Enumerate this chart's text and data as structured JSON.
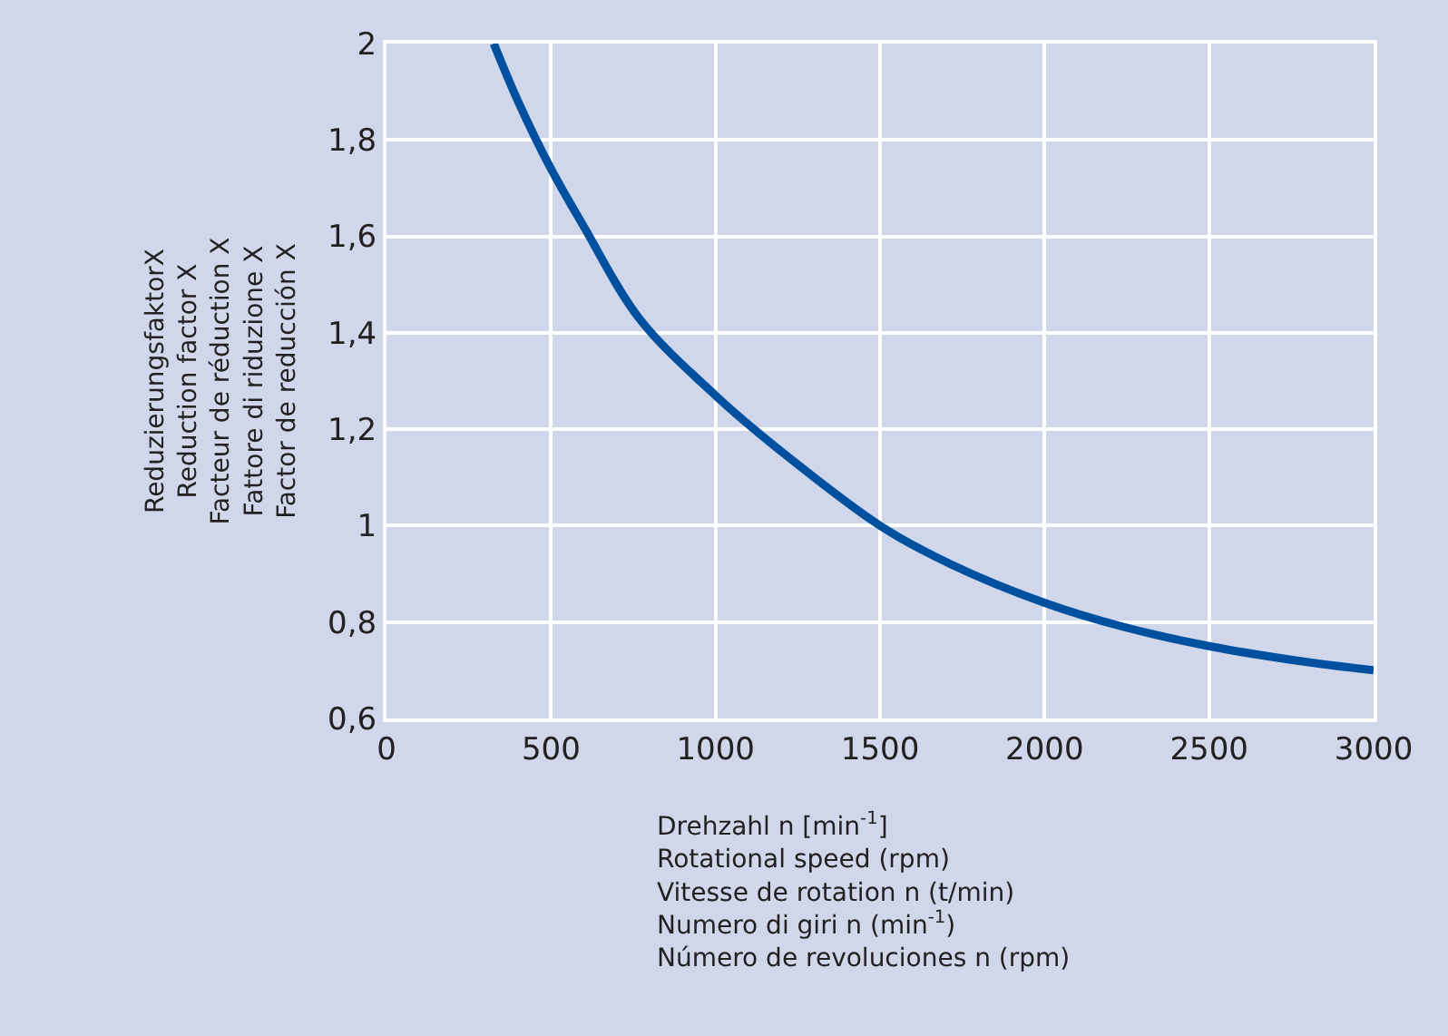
{
  "chart_data": {
    "type": "line",
    "xlabel": "Drehzahl n [min$^{-1}$]\nRotational speed (rpm)\nVitesse de rotation n (t/min)\nNumero di giri n (min$^{-1}$)\nNúmero de revoluciones n (rpm)",
    "ylabel": "ReduzierungsfaktorX\nReduction factor X\nFacteur de réduction X\nFattore di riduzione X\nFactor de reducción X",
    "x": [
      326,
      400,
      500,
      600,
      768,
      1000,
      1189,
      1500,
      1715,
      2000,
      2240,
      2500,
      2767,
      3000
    ],
    "series": [
      {
        "color": "#0050a0",
        "values": [
          2.0,
          1.88,
          1.74,
          1.62,
          1.43,
          1.27,
          1.16,
          1.0,
          0.92,
          0.84,
          0.79,
          0.75,
          0.72,
          0.7
        ]
      }
    ],
    "xlim": [
      0,
      3000
    ],
    "xticks": [
      0,
      500,
      1000,
      1500,
      2000,
      2500,
      3000
    ],
    "ylim": [
      0.6,
      2
    ],
    "yticks": [
      {
        "value": 0.6,
        "label": "0,6"
      },
      {
        "value": 0.8,
        "label": "0,8"
      },
      {
        "value": 1,
        "label": "1"
      },
      {
        "value": 1.2,
        "label": "1,2"
      },
      {
        "value": 1.4,
        "label": "1,4"
      },
      {
        "value": 1.6,
        "label": "1,6"
      },
      {
        "value": 1.8,
        "label": "1,8"
      },
      {
        "value": 2,
        "label": "2"
      }
    ],
    "grid": true,
    "marker": "none",
    "line_style": "solid"
  }
}
